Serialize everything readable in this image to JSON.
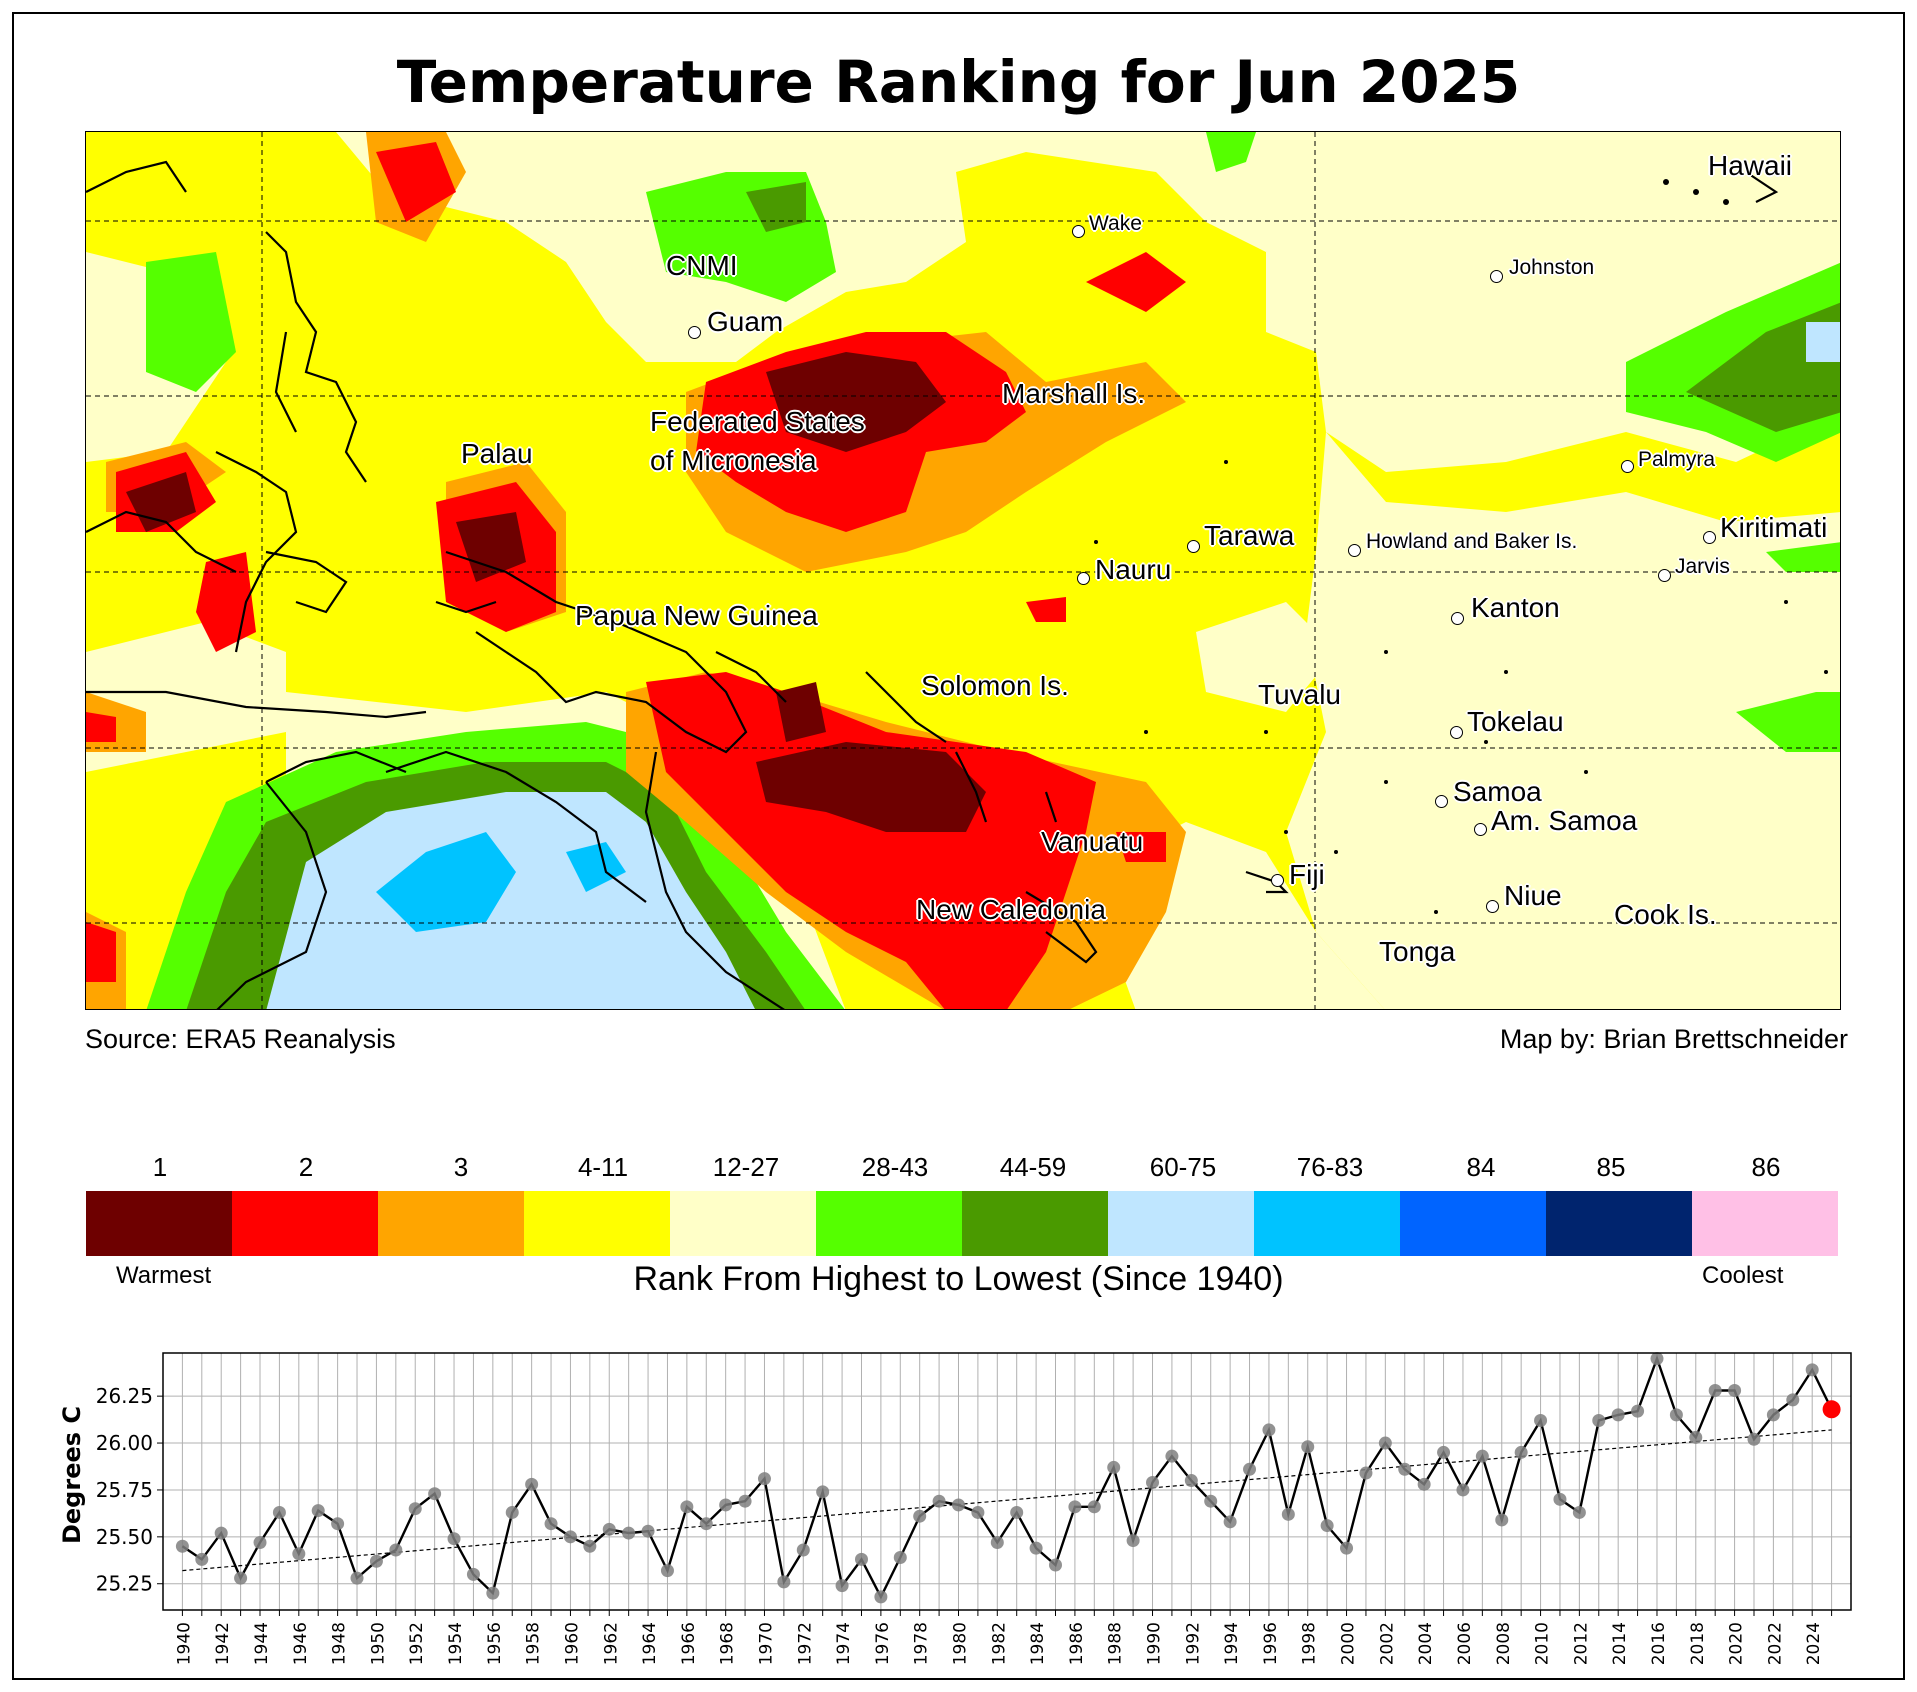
{
  "title": "Temperature Ranking for Jun 2025",
  "map": {
    "source": "Source: ERA5 Reanalysis",
    "credit": "Map by: Brian Brettschneider",
    "labels": [
      {
        "id": "hawaii",
        "text": "Hawaii",
        "size": "big"
      },
      {
        "id": "wake",
        "text": "Wake",
        "size": "small"
      },
      {
        "id": "johnston",
        "text": "Johnston",
        "size": "small"
      },
      {
        "id": "cnmi",
        "text": "CNMI",
        "size": "big"
      },
      {
        "id": "guam",
        "text": "Guam",
        "size": "big"
      },
      {
        "id": "marshall",
        "text": "Marshall Is.",
        "size": "big"
      },
      {
        "id": "fsm1",
        "text": "Federated States",
        "size": "big"
      },
      {
        "id": "fsm2",
        "text": "of Micronesia",
        "size": "big"
      },
      {
        "id": "palau",
        "text": "Palau",
        "size": "big"
      },
      {
        "id": "palmyra",
        "text": "Palmyra",
        "size": "small"
      },
      {
        "id": "tarawa",
        "text": "Tarawa",
        "size": "big"
      },
      {
        "id": "howland",
        "text": "Howland and Baker Is.",
        "size": "small"
      },
      {
        "id": "kiritimati",
        "text": "Kiritimati",
        "size": "big"
      },
      {
        "id": "nauru",
        "text": "Nauru",
        "size": "big"
      },
      {
        "id": "jarvis",
        "text": "Jarvis",
        "size": "small"
      },
      {
        "id": "png",
        "text": "Papua New Guinea",
        "size": "big"
      },
      {
        "id": "kanton",
        "text": "Kanton",
        "size": "big"
      },
      {
        "id": "solomon",
        "text": "Solomon Is.",
        "size": "big"
      },
      {
        "id": "tuvalu",
        "text": "Tuvalu",
        "size": "big"
      },
      {
        "id": "tokelau",
        "text": "Tokelau",
        "size": "big"
      },
      {
        "id": "samoa",
        "text": "Samoa",
        "size": "big"
      },
      {
        "id": "amsamoa",
        "text": "Am. Samoa",
        "size": "big"
      },
      {
        "id": "vanuatu",
        "text": "Vanuatu",
        "size": "big"
      },
      {
        "id": "fiji",
        "text": "Fiji",
        "size": "big"
      },
      {
        "id": "niue",
        "text": "Niue",
        "size": "big"
      },
      {
        "id": "newcaledonia",
        "text": "New Caledonia",
        "size": "big"
      },
      {
        "id": "cook",
        "text": "Cook Is.",
        "size": "big"
      },
      {
        "id": "tonga",
        "text": "Tonga",
        "size": "big"
      }
    ]
  },
  "colorbar": {
    "title": "Rank From Highest to Lowest (Since 1940)",
    "warmest": "Warmest",
    "coolest": "Coolest",
    "bins": [
      {
        "label": "1",
        "color": "#6e0000"
      },
      {
        "label": "2",
        "color": "#ff0000"
      },
      {
        "label": "3",
        "color": "#ffa500"
      },
      {
        "label": "4-11",
        "color": "#ffff00"
      },
      {
        "label": "12-27",
        "color": "#ffffc8"
      },
      {
        "label": "28-43",
        "color": "#55ff00"
      },
      {
        "label": "44-59",
        "color": "#4a9a00"
      },
      {
        "label": "60-75",
        "color": "#bfe6ff"
      },
      {
        "label": "76-83",
        "color": "#00c3ff"
      },
      {
        "label": "84",
        "color": "#0064ff"
      },
      {
        "label": "85",
        "color": "#00246e"
      },
      {
        "label": "86",
        "color": "#ffc0e6"
      }
    ]
  },
  "chart_data": {
    "type": "line",
    "title": "",
    "xlabel": "",
    "ylabel": "Degrees C",
    "ylim": [
      25.11,
      26.48
    ],
    "xlim": [
      1939.0,
      2026.0
    ],
    "yticks": [
      25.25,
      25.5,
      25.75,
      26.0,
      26.25
    ],
    "ytick_labels": [
      "25.25",
      "25.50",
      "25.75",
      "26.00",
      "26.25"
    ],
    "xtick_labels": [
      "1940",
      "1942",
      "1944",
      "1946",
      "1948",
      "1950",
      "1952",
      "1954",
      "1956",
      "1958",
      "1960",
      "1962",
      "1964",
      "1966",
      "1968",
      "1970",
      "1972",
      "1974",
      "1976",
      "1978",
      "1980",
      "1982",
      "1984",
      "1986",
      "1988",
      "1990",
      "1992",
      "1994",
      "1996",
      "1998",
      "2000",
      "2002",
      "2004",
      "2006",
      "2008",
      "2010",
      "2012",
      "2014",
      "2016",
      "2018",
      "2020",
      "2022",
      "2024"
    ],
    "grid": true,
    "trend": {
      "start": [
        1940,
        25.32
      ],
      "end": [
        2025,
        26.07
      ]
    },
    "highlight_year": 2025,
    "highlight_color": "#ff0000",
    "x": [
      1940,
      1941,
      1942,
      1943,
      1944,
      1945,
      1946,
      1947,
      1948,
      1949,
      1950,
      1951,
      1952,
      1953,
      1954,
      1955,
      1956,
      1957,
      1958,
      1959,
      1960,
      1961,
      1962,
      1963,
      1964,
      1965,
      1966,
      1967,
      1968,
      1969,
      1970,
      1971,
      1972,
      1973,
      1974,
      1975,
      1976,
      1977,
      1978,
      1979,
      1980,
      1981,
      1982,
      1983,
      1984,
      1985,
      1986,
      1987,
      1988,
      1989,
      1990,
      1991,
      1992,
      1993,
      1994,
      1995,
      1996,
      1997,
      1998,
      1999,
      2000,
      2001,
      2002,
      2003,
      2004,
      2005,
      2006,
      2007,
      2008,
      2009,
      2010,
      2011,
      2012,
      2013,
      2014,
      2015,
      2016,
      2017,
      2018,
      2019,
      2020,
      2021,
      2022,
      2023,
      2024,
      2025
    ],
    "values": [
      25.45,
      25.38,
      25.52,
      25.28,
      25.47,
      25.63,
      25.41,
      25.64,
      25.57,
      25.28,
      25.37,
      25.43,
      25.65,
      25.73,
      25.49,
      25.3,
      25.2,
      25.63,
      25.78,
      25.57,
      25.5,
      25.45,
      25.54,
      25.52,
      25.53,
      25.32,
      25.66,
      25.57,
      25.67,
      25.69,
      25.81,
      25.26,
      25.43,
      25.74,
      25.24,
      25.38,
      25.18,
      25.39,
      25.61,
      25.69,
      25.67,
      25.63,
      25.47,
      25.63,
      25.44,
      25.35,
      25.66,
      25.66,
      25.87,
      25.48,
      25.79,
      25.93,
      25.8,
      25.69,
      25.58,
      25.86,
      26.07,
      25.62,
      25.98,
      25.56,
      25.44,
      25.84,
      26.0,
      25.86,
      25.78,
      25.95,
      25.75,
      25.93,
      25.59,
      25.95,
      26.12,
      25.7,
      25.63,
      26.12,
      26.15,
      26.17,
      26.45,
      26.15,
      26.03,
      26.28,
      26.28,
      26.02,
      26.15,
      26.23,
      26.39,
      26.18
    ]
  }
}
